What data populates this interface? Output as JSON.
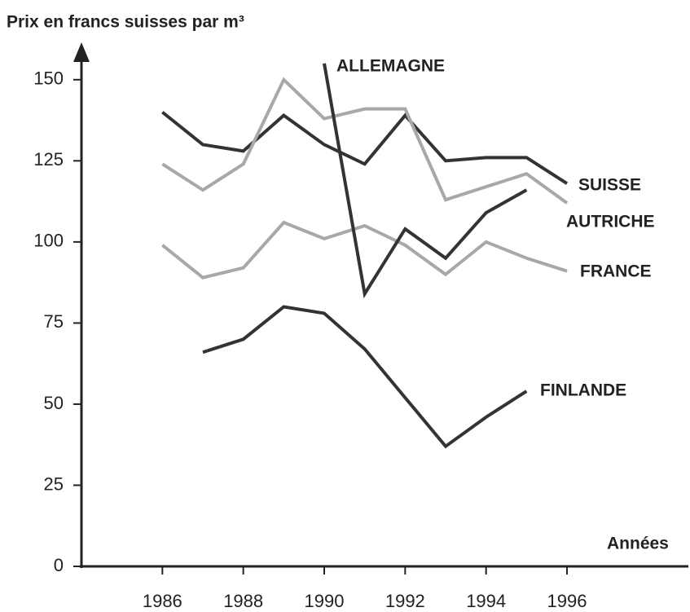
{
  "chart_data": {
    "type": "line",
    "title": "Prix en francs suisses par m³",
    "xlabel": "Années",
    "xlim": [
      1984,
      1999
    ],
    "ylim": [
      0,
      160
    ],
    "xticks": [
      1986,
      1988,
      1990,
      1992,
      1994,
      1996
    ],
    "yticks": [
      0,
      25,
      50,
      75,
      100,
      125,
      150
    ],
    "series": [
      {
        "name": "SUISSE",
        "color": "#333333",
        "x": [
          1986,
          1987,
          1988,
          1989,
          1990,
          1991,
          1992,
          1993,
          1994,
          1995,
          1996
        ],
        "values": [
          140,
          130,
          128,
          139,
          130,
          124,
          139,
          125,
          126,
          126,
          118
        ]
      },
      {
        "name": "AUTRICHE",
        "color": "#a8a8a8",
        "x": [
          1986,
          1987,
          1988,
          1989,
          1990,
          1991,
          1992,
          1993,
          1994,
          1995,
          1996
        ],
        "values": [
          124,
          116,
          124,
          150,
          138,
          141,
          141,
          113,
          117,
          121,
          112
        ]
      },
      {
        "name": "FRANCE",
        "color": "#a8a8a8",
        "x": [
          1986,
          1987,
          1988,
          1989,
          1990,
          1991,
          1992,
          1993,
          1994,
          1995,
          1996
        ],
        "values": [
          99,
          89,
          92,
          106,
          101,
          105,
          99,
          90,
          100,
          95,
          91
        ]
      },
      {
        "name": "ALLEMAGNE",
        "color": "#333333",
        "x": [
          1990,
          1991,
          1992,
          1993,
          1994,
          1995
        ],
        "values": [
          155,
          84,
          104,
          95,
          109,
          116
        ]
      },
      {
        "name": "FINLANDE",
        "color": "#333333",
        "x": [
          1987,
          1988,
          1989,
          1990,
          1991,
          1992,
          1993,
          1994,
          1995
        ],
        "values": [
          66,
          70,
          80,
          78,
          67,
          52,
          37,
          46,
          54
        ]
      }
    ]
  }
}
